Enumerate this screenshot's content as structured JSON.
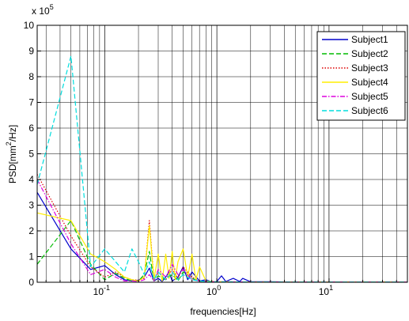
{
  "chart_data": {
    "type": "line",
    "xscale": "log",
    "xlim": [
      0.025,
      50
    ],
    "ylim": [
      0,
      1000000
    ],
    "grid": true,
    "legend_position": "top-right",
    "xlabel": "frequencies[Hz]",
    "ylabel_prefix": "PSD[mm",
    "ylabel_sup": "2",
    "ylabel_suffix": "/Hz]",
    "y_multiplier_base": "x 10",
    "y_multiplier_exp": "5",
    "x_ticks": [
      {
        "value": 0.1,
        "base": "10",
        "exp": "-1"
      },
      {
        "value": 1,
        "base": "10",
        "exp": "0"
      },
      {
        "value": 10,
        "base": "10",
        "exp": "1"
      }
    ],
    "y_ticks": [
      0,
      100000,
      200000,
      300000,
      400000,
      500000,
      600000,
      700000,
      800000,
      900000,
      1000000
    ],
    "y_tick_labels": [
      "0",
      "1",
      "2",
      "3",
      "4",
      "5",
      "6",
      "7",
      "8",
      "9",
      "10"
    ],
    "series": [
      {
        "name": "Subject1",
        "color": "#0000cc",
        "dash": "solid",
        "x": [
          0.025,
          0.05,
          0.075,
          0.1,
          0.125,
          0.15,
          0.175,
          0.2,
          0.225,
          0.25,
          0.275,
          0.3,
          0.325,
          0.35,
          0.375,
          0.4,
          0.45,
          0.5,
          0.55,
          0.6,
          0.7,
          0.8,
          0.9,
          1.0,
          1.1,
          1.2,
          1.4,
          1.6,
          1.7,
          2,
          3,
          5,
          10,
          20,
          50
        ],
        "y": [
          350000,
          130000,
          50000,
          65000,
          30000,
          10000,
          5000,
          8000,
          20000,
          55000,
          5000,
          15000,
          3000,
          20000,
          40000,
          5000,
          20000,
          60000,
          10000,
          40000,
          5000,
          10000,
          2000,
          3000,
          25000,
          3000,
          15000,
          3000,
          15000,
          2000,
          2000,
          1000,
          1000,
          1000,
          1000
        ]
      },
      {
        "name": "Subject2",
        "color": "#00bb00",
        "dash": "6,3",
        "x": [
          0.025,
          0.05,
          0.075,
          0.1,
          0.125,
          0.15,
          0.175,
          0.2,
          0.225,
          0.25,
          0.275,
          0.3,
          0.35,
          0.4,
          0.45,
          0.5,
          0.6,
          0.7,
          0.8,
          1,
          2,
          5,
          10,
          20,
          50
        ],
        "y": [
          70000,
          240000,
          70000,
          10000,
          35000,
          15000,
          5000,
          5000,
          30000,
          120000,
          5000,
          25000,
          10000,
          30000,
          5000,
          40000,
          15000,
          5000,
          3000,
          2000,
          1000,
          1000,
          1000,
          1000,
          1000
        ]
      },
      {
        "name": "Subject3",
        "color": "#dd0000",
        "dash": "1.5,2",
        "x": [
          0.025,
          0.05,
          0.075,
          0.1,
          0.125,
          0.15,
          0.175,
          0.2,
          0.225,
          0.25,
          0.275,
          0.3,
          0.35,
          0.4,
          0.45,
          0.5,
          0.6,
          0.7,
          0.8,
          1,
          2,
          5,
          10,
          20,
          50
        ],
        "y": [
          420000,
          180000,
          60000,
          20000,
          40000,
          20000,
          10000,
          8000,
          15000,
          240000,
          10000,
          40000,
          10000,
          50000,
          15000,
          60000,
          20000,
          5000,
          3000,
          2000,
          1000,
          1000,
          1000,
          1000,
          1000
        ]
      },
      {
        "name": "Subject4",
        "color": "#ffee00",
        "dash": "solid",
        "x": [
          0.025,
          0.05,
          0.075,
          0.1,
          0.125,
          0.15,
          0.175,
          0.2,
          0.225,
          0.25,
          0.275,
          0.3,
          0.325,
          0.35,
          0.375,
          0.4,
          0.425,
          0.45,
          0.5,
          0.55,
          0.6,
          0.65,
          0.7,
          0.8,
          1,
          2,
          5,
          10,
          20,
          50
        ],
        "y": [
          270000,
          240000,
          110000,
          80000,
          50000,
          20000,
          10000,
          5000,
          20000,
          220000,
          10000,
          110000,
          5000,
          110000,
          15000,
          120000,
          10000,
          80000,
          130000,
          20000,
          110000,
          10000,
          60000,
          5000,
          2000,
          1000,
          1000,
          1000,
          1000,
          1000
        ]
      },
      {
        "name": "Subject5",
        "color": "#dd00dd",
        "dash": "6,2,1.5,2",
        "x": [
          0.025,
          0.05,
          0.075,
          0.1,
          0.125,
          0.15,
          0.175,
          0.2,
          0.225,
          0.25,
          0.275,
          0.3,
          0.35,
          0.4,
          0.45,
          0.5,
          0.6,
          0.7,
          0.8,
          1,
          2,
          5,
          10,
          20,
          50
        ],
        "y": [
          400000,
          150000,
          30000,
          50000,
          20000,
          5000,
          5000,
          3000,
          10000,
          30000,
          5000,
          50000,
          20000,
          70000,
          30000,
          50000,
          10000,
          5000,
          3000,
          2000,
          1000,
          1000,
          1000,
          1000,
          1000
        ]
      },
      {
        "name": "Subject6",
        "color": "#00dddd",
        "dash": "6,3",
        "x": [
          0.025,
          0.05,
          0.075,
          0.1,
          0.125,
          0.15,
          0.175,
          0.2,
          0.225,
          0.25,
          0.275,
          0.3,
          0.35,
          0.4,
          0.45,
          0.5,
          0.6,
          0.7,
          0.8,
          1,
          2,
          5,
          10,
          20,
          50
        ],
        "y": [
          380000,
          880000,
          60000,
          130000,
          80000,
          40000,
          130000,
          80000,
          30000,
          80000,
          10000,
          40000,
          10000,
          40000,
          10000,
          30000,
          10000,
          5000,
          3000,
          2000,
          1000,
          1000,
          1000,
          1000,
          1000
        ]
      }
    ]
  }
}
